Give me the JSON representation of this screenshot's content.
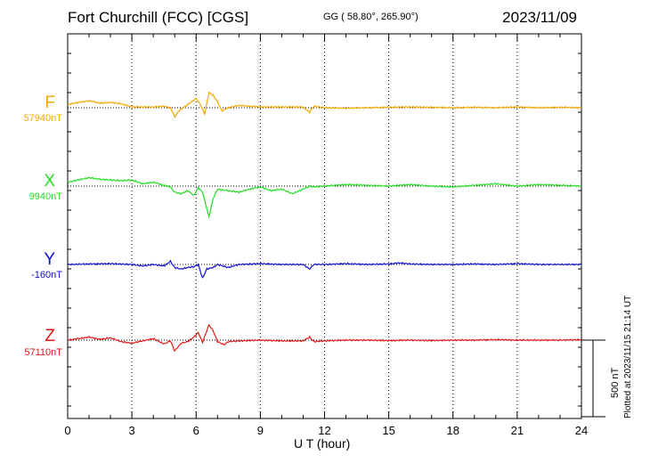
{
  "header": {
    "title": "Fort Churchill (FCC)  [CGS]",
    "coords": "GG ( 58.80°, 265.90°)",
    "date": "2023/11/09"
  },
  "footer": {
    "plotted": "Plotted at 2023/11/15 21:14 UT",
    "scale_label": "500 nT"
  },
  "chart_data": {
    "type": "line",
    "xlabel": "U T (hour)",
    "xlim": [
      0,
      24
    ],
    "xticks": [
      0,
      3,
      6,
      9,
      12,
      15,
      18,
      21,
      24
    ],
    "scale_bar_nT": 500,
    "grid": true,
    "series": [
      {
        "name": "F",
        "baseline_label": "57940nT",
        "color": "#f5a800",
        "points": [
          [
            0,
            20
          ],
          [
            0.5,
            35
          ],
          [
            1,
            45
          ],
          [
            1.5,
            30
          ],
          [
            2,
            35
          ],
          [
            2.5,
            25
          ],
          [
            3,
            5
          ],
          [
            3.5,
            5
          ],
          [
            4,
            5
          ],
          [
            4.5,
            10
          ],
          [
            4.8,
            0
          ],
          [
            5,
            -60
          ],
          [
            5.2,
            -20
          ],
          [
            5.5,
            10
          ],
          [
            5.8,
            40
          ],
          [
            6,
            60
          ],
          [
            6.2,
            20
          ],
          [
            6.4,
            -40
          ],
          [
            6.6,
            100
          ],
          [
            6.8,
            80
          ],
          [
            7,
            40
          ],
          [
            7.2,
            -20
          ],
          [
            7.5,
            0
          ],
          [
            8,
            15
          ],
          [
            9,
            5
          ],
          [
            10,
            5
          ],
          [
            11,
            5
          ],
          [
            11.3,
            -30
          ],
          [
            11.5,
            10
          ],
          [
            12,
            0
          ],
          [
            13,
            -3
          ],
          [
            14,
            0
          ],
          [
            15,
            3
          ],
          [
            16,
            5
          ],
          [
            17,
            3
          ],
          [
            18,
            0
          ],
          [
            19,
            3
          ],
          [
            20,
            0
          ],
          [
            21,
            5
          ],
          [
            22,
            0
          ],
          [
            23,
            3
          ],
          [
            24,
            0
          ]
        ]
      },
      {
        "name": "X",
        "baseline_label": "9940nT",
        "color": "#22dd22",
        "points": [
          [
            0,
            25
          ],
          [
            0.5,
            40
          ],
          [
            1,
            55
          ],
          [
            1.5,
            45
          ],
          [
            2,
            40
          ],
          [
            2.5,
            35
          ],
          [
            3,
            40
          ],
          [
            3.5,
            15
          ],
          [
            4,
            25
          ],
          [
            4.5,
            5
          ],
          [
            4.8,
            -5
          ],
          [
            5,
            -40
          ],
          [
            5.3,
            -50
          ],
          [
            5.6,
            -30
          ],
          [
            5.9,
            -60
          ],
          [
            6.1,
            -10
          ],
          [
            6.3,
            -40
          ],
          [
            6.6,
            -200
          ],
          [
            6.8,
            -80
          ],
          [
            7,
            -20
          ],
          [
            7.5,
            -30
          ],
          [
            8,
            -40
          ],
          [
            8.5,
            -20
          ],
          [
            9,
            -5
          ],
          [
            9.5,
            -30
          ],
          [
            10,
            -20
          ],
          [
            10.5,
            -50
          ],
          [
            11,
            -20
          ],
          [
            11.3,
            0
          ],
          [
            11.5,
            -5
          ],
          [
            12,
            0
          ],
          [
            13,
            10
          ],
          [
            14,
            5
          ],
          [
            15,
            0
          ],
          [
            16,
            10
          ],
          [
            17,
            0
          ],
          [
            18,
            -5
          ],
          [
            19,
            5
          ],
          [
            20,
            15
          ],
          [
            21,
            0
          ],
          [
            22,
            10
          ],
          [
            23,
            5
          ],
          [
            24,
            0
          ]
        ]
      },
      {
        "name": "Y",
        "baseline_label": "-160nT",
        "color": "#1010d0",
        "points": [
          [
            0,
            0
          ],
          [
            1,
            3
          ],
          [
            2,
            5
          ],
          [
            3,
            0
          ],
          [
            3.5,
            -10
          ],
          [
            4,
            0
          ],
          [
            4.5,
            -10
          ],
          [
            4.8,
            20
          ],
          [
            5,
            -20
          ],
          [
            5.3,
            -30
          ],
          [
            5.6,
            -20
          ],
          [
            5.9,
            -15
          ],
          [
            6.1,
            0
          ],
          [
            6.3,
            -90
          ],
          [
            6.5,
            -30
          ],
          [
            6.8,
            -20
          ],
          [
            7,
            0
          ],
          [
            7.5,
            -20
          ],
          [
            8,
            0
          ],
          [
            9,
            5
          ],
          [
            10,
            0
          ],
          [
            11,
            0
          ],
          [
            11.3,
            -30
          ],
          [
            11.5,
            0
          ],
          [
            12,
            0
          ],
          [
            13,
            5
          ],
          [
            14,
            0
          ],
          [
            15,
            3
          ],
          [
            15.5,
            10
          ],
          [
            16,
            3
          ],
          [
            17,
            0
          ],
          [
            18,
            0
          ],
          [
            19,
            3
          ],
          [
            20,
            0
          ],
          [
            21,
            5
          ],
          [
            22,
            0
          ],
          [
            23,
            0
          ],
          [
            24,
            0
          ]
        ]
      },
      {
        "name": "Z",
        "baseline_label": "57110nT",
        "color": "#e01818",
        "points": [
          [
            0,
            0
          ],
          [
            0.5,
            10
          ],
          [
            1,
            20
          ],
          [
            1.5,
            5
          ],
          [
            2,
            15
          ],
          [
            2.5,
            -10
          ],
          [
            3,
            -20
          ],
          [
            3.5,
            -5
          ],
          [
            4,
            10
          ],
          [
            4.5,
            -25
          ],
          [
            4.8,
            -5
          ],
          [
            5,
            -70
          ],
          [
            5.3,
            -20
          ],
          [
            5.6,
            -10
          ],
          [
            5.9,
            20
          ],
          [
            6.1,
            50
          ],
          [
            6.3,
            -15
          ],
          [
            6.6,
            100
          ],
          [
            6.8,
            60
          ],
          [
            7,
            -10
          ],
          [
            7.3,
            -30
          ],
          [
            7.5,
            -10
          ],
          [
            8,
            -5
          ],
          [
            9,
            0
          ],
          [
            10,
            -5
          ],
          [
            11,
            -5
          ],
          [
            11.3,
            20
          ],
          [
            11.5,
            -10
          ],
          [
            12,
            -5
          ],
          [
            13,
            0
          ],
          [
            14,
            0
          ],
          [
            15,
            -3
          ],
          [
            16,
            0
          ],
          [
            17,
            -3
          ],
          [
            18,
            0
          ],
          [
            19,
            0
          ],
          [
            20,
            3
          ],
          [
            21,
            0
          ],
          [
            22,
            0
          ],
          [
            23,
            0
          ],
          [
            24,
            3
          ]
        ]
      }
    ]
  }
}
